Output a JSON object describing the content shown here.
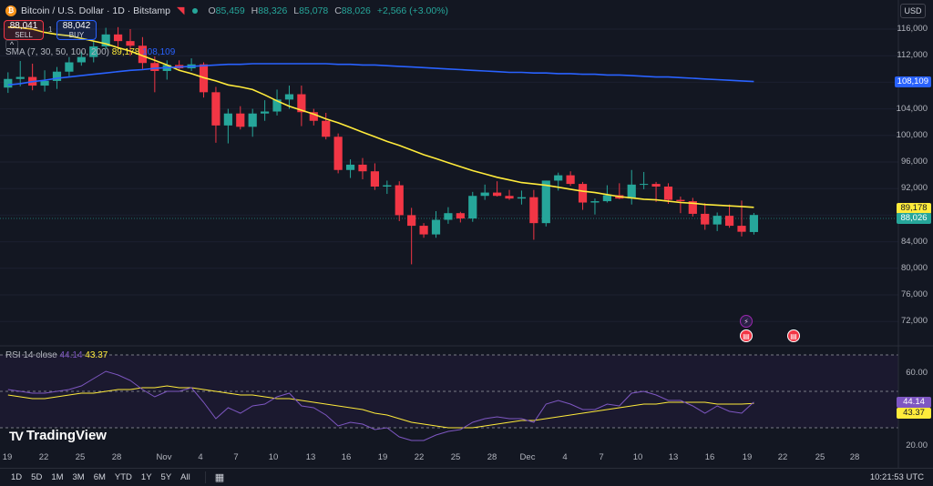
{
  "header": {
    "title": "Bitcoin / U.S. Dollar · 1D · Bitstamp",
    "ohlc": {
      "o_label": "O",
      "o": "85,459",
      "h_label": "H",
      "h": "88,326",
      "l_label": "L",
      "l": "85,078",
      "c_label": "C",
      "c": "88,026",
      "change": "+2,566 (+3.00%)"
    },
    "currency": "USD"
  },
  "trade": {
    "sell_price": "88,041",
    "sell_label": "SELL",
    "buy_price": "88,042",
    "buy_label": "BUY",
    "spread": "1"
  },
  "sma_legend": {
    "label": "SMA (7, 30, 50, 100, 200)",
    "v1": "89,178",
    "v2": "108,109"
  },
  "rsi_legend": {
    "label": "RSI 14 close",
    "v1": "44.14",
    "v2": "43.37"
  },
  "price_tags": {
    "sma_long": "108,109",
    "sma_short": "89,178",
    "last": "88,026",
    "rsi": "44.14",
    "rsi_ma": "43.37"
  },
  "colors": {
    "up": "#26a69a",
    "down": "#f23645",
    "sma_short": "#ffeb3b",
    "sma_long": "#2962ff",
    "rsi": "#7e57c2",
    "rsi_ma": "#ffeb3b",
    "bg": "#131722"
  },
  "y_ticks": [
    "116,000",
    "112,000",
    "108,000",
    "104,000",
    "100,000",
    "96,000",
    "92,000",
    "88,000",
    "84,000",
    "80,000",
    "76,000",
    "72,000"
  ],
  "rsi_ticks": [
    "60.00",
    "20.00"
  ],
  "x_ticks": [
    "19",
    "22",
    "25",
    "28",
    "Nov",
    "4",
    "7",
    "10",
    "13",
    "16",
    "19",
    "22",
    "25",
    "28",
    "Dec",
    "4",
    "7",
    "10",
    "13",
    "16",
    "19",
    "22",
    "25",
    "28"
  ],
  "branding": "TradingView",
  "bottom_bar": {
    "ranges": [
      "1D",
      "5D",
      "1M",
      "3M",
      "6M",
      "YTD",
      "1Y",
      "5Y",
      "All"
    ],
    "clock": "10:21:53 UTC"
  },
  "chart_data": [
    {
      "type": "candlestick",
      "title": "Bitcoin / U.S. Dollar · 1D · Bitstamp",
      "x_start": "Oct 19",
      "ylim": [
        68000,
        118000
      ],
      "candles": [
        [
          107200,
          109500,
          106400,
          108500
        ],
        [
          108500,
          111200,
          107400,
          108800
        ],
        [
          108800,
          110800,
          106800,
          107500
        ],
        [
          107500,
          109800,
          106600,
          108200
        ],
        [
          108200,
          110300,
          107000,
          109600
        ],
        [
          109600,
          111800,
          108900,
          111000
        ],
        [
          111000,
          112600,
          110500,
          111800
        ],
        [
          111800,
          114300,
          111000,
          113400
        ],
        [
          113400,
          116200,
          113000,
          115200
        ],
        [
          115200,
          116300,
          113300,
          114200
        ],
        [
          114200,
          116000,
          112000,
          113500
        ],
        [
          113500,
          114800,
          110000,
          110900
        ],
        [
          110900,
          111900,
          106500,
          109700
        ],
        [
          109700,
          111300,
          108400,
          110600
        ],
        [
          110600,
          111300,
          109900,
          110100
        ],
        [
          110100,
          111600,
          109700,
          110700
        ],
        [
          110700,
          111000,
          105700,
          106500
        ],
        [
          106500,
          107300,
          98900,
          101500
        ],
        [
          101500,
          104000,
          98800,
          103300
        ],
        [
          103300,
          104400,
          100900,
          101300
        ],
        [
          101300,
          104000,
          99800,
          103300
        ],
        [
          103300,
          105300,
          102200,
          103600
        ],
        [
          103600,
          106900,
          103000,
          105400
        ],
        [
          105400,
          107500,
          104000,
          106200
        ],
        [
          106200,
          107500,
          101400,
          103500
        ],
        [
          103500,
          104000,
          101500,
          102200
        ],
        [
          102200,
          103400,
          99400,
          99800
        ],
        [
          99800,
          100300,
          94300,
          94800
        ],
        [
          94800,
          96400,
          93600,
          95600
        ],
        [
          95600,
          96600,
          93400,
          94600
        ],
        [
          94600,
          95800,
          91800,
          92300
        ],
        [
          92300,
          93200,
          91200,
          92500
        ],
        [
          92500,
          93100,
          87100,
          88000
        ],
        [
          88000,
          89100,
          80600,
          86400
        ],
        [
          86400,
          86800,
          84600,
          85100
        ],
        [
          85100,
          88600,
          84600,
          87300
        ],
        [
          87300,
          89200,
          86700,
          88300
        ],
        [
          88300,
          88500,
          86900,
          87500
        ],
        [
          87500,
          91500,
          87000,
          90900
        ],
        [
          90900,
          92600,
          90300,
          91400
        ],
        [
          91400,
          93100,
          90800,
          90900
        ],
        [
          90900,
          91800,
          90300,
          90500
        ],
        [
          90500,
          91700,
          89600,
          90700
        ],
        [
          90700,
          91800,
          84300,
          86800
        ],
        [
          86800,
          93200,
          86300,
          93200
        ],
        [
          93200,
          94400,
          91700,
          94000
        ],
        [
          94000,
          94600,
          92400,
          92700
        ],
        [
          92700,
          93000,
          88800,
          89900
        ],
        [
          89900,
          90500,
          88100,
          90100
        ],
        [
          90100,
          92500,
          89900,
          91000
        ],
        [
          91000,
          92800,
          90400,
          90500
        ],
        [
          90500,
          94800,
          89600,
          92600
        ],
        [
          92600,
          94500,
          91900,
          92700
        ],
        [
          92700,
          93000,
          90000,
          92300
        ],
        [
          92300,
          92800,
          89700,
          90300
        ],
        [
          90300,
          90800,
          88300,
          90100
        ],
        [
          90100,
          90600,
          87800,
          88200
        ],
        [
          88200,
          89800,
          85800,
          86600
        ],
        [
          86600,
          88400,
          85600,
          87900
        ],
        [
          87900,
          89600,
          86100,
          86400
        ],
        [
          86400,
          90200,
          84800,
          85500
        ],
        [
          85459,
          88326,
          85078,
          88026
        ]
      ],
      "sma_short": [
        116300,
        116200,
        116000,
        115500,
        115200,
        115000,
        114600,
        114200,
        113800,
        113200,
        112700,
        112000,
        111300,
        110600,
        109800,
        109300,
        108700,
        108200,
        107600,
        107300,
        106900,
        106100,
        105200,
        104400,
        103800,
        103200,
        102500,
        101900,
        101200,
        100500,
        99800,
        99100,
        98500,
        97800,
        97100,
        96500,
        95900,
        95300,
        94700,
        94200,
        93700,
        93300,
        92900,
        92700,
        92500,
        92200,
        91900,
        91600,
        91400,
        91100,
        90800,
        90600,
        90400,
        90300,
        90100,
        89900,
        89800,
        89600,
        89500,
        89400,
        89300,
        89178
      ],
      "sma_long": [
        107600,
        107800,
        108100,
        108300,
        108600,
        108800,
        109000,
        109200,
        109400,
        109600,
        109800,
        109900,
        110100,
        110200,
        110300,
        110400,
        110500,
        110600,
        110700,
        110700,
        110800,
        110800,
        110800,
        110800,
        110800,
        110800,
        110800,
        110700,
        110700,
        110600,
        110600,
        110500,
        110400,
        110300,
        110200,
        110100,
        110000,
        109900,
        109800,
        109700,
        109600,
        109500,
        109500,
        109400,
        109400,
        109300,
        109300,
        109200,
        109200,
        109100,
        109100,
        109000,
        108900,
        108800,
        108800,
        108700,
        108600,
        108500,
        108400,
        108300,
        108200,
        108109
      ]
    },
    {
      "type": "line",
      "title": "RSI 14 close",
      "ylim": [
        20,
        70
      ],
      "bands": [
        30,
        70
      ],
      "series": [
        {
          "name": "RSI",
          "values": [
            51,
            50,
            49,
            49,
            50,
            51,
            53,
            57,
            61,
            59,
            56,
            51,
            47,
            50,
            50,
            52,
            44,
            35,
            41,
            38,
            42,
            43,
            47,
            49,
            42,
            41,
            37,
            31,
            33,
            32,
            29,
            30,
            25,
            23,
            23,
            26,
            28,
            29,
            33,
            35,
            36,
            35,
            35,
            33,
            43,
            45,
            43,
            40,
            40,
            43,
            42,
            49,
            50,
            48,
            45,
            45,
            42,
            38,
            42,
            39,
            38,
            44.14
          ]
        },
        {
          "name": "RSI-based MA",
          "values": [
            48,
            47,
            46,
            46,
            47,
            48,
            49,
            49,
            50,
            51,
            51,
            52,
            52,
            53,
            52,
            52,
            51,
            50,
            49,
            48,
            48,
            47,
            46,
            46,
            45,
            44,
            43,
            42,
            41,
            40,
            38,
            37,
            35,
            33,
            32,
            31,
            30,
            30,
            30,
            31,
            32,
            33,
            34,
            34,
            35,
            36,
            37,
            38,
            39,
            40,
            41,
            42,
            43,
            43,
            44,
            44,
            44,
            44,
            43,
            43,
            43,
            43.37
          ]
        }
      ]
    }
  ]
}
